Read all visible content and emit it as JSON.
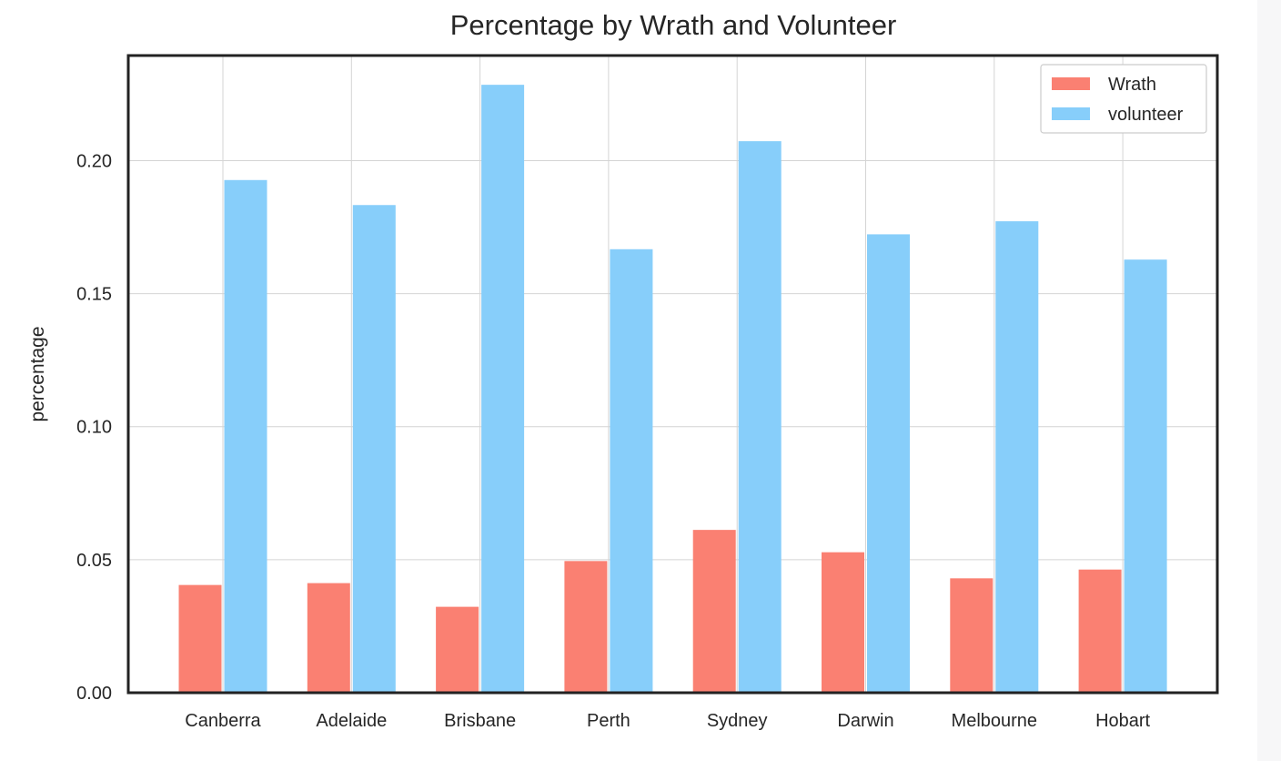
{
  "chart_data": {
    "type": "bar",
    "title": "Percentage by Wrath and Volunteer",
    "xlabel": "",
    "ylabel": "percentage",
    "categories": [
      "Canberra",
      "Adelaide",
      "Brisbane",
      "Perth",
      "Sydney",
      "Darwin",
      "Melbourne",
      "Hobart"
    ],
    "series": [
      {
        "name": "Wrath",
        "color": "#fa8072",
        "values": [
          0.0405,
          0.0412,
          0.0323,
          0.0495,
          0.0612,
          0.0528,
          0.043,
          0.0463
        ]
      },
      {
        "name": "volunteer",
        "color": "#87cefa",
        "values": [
          0.1927,
          0.1833,
          0.2285,
          0.1667,
          0.2073,
          0.1723,
          0.1772,
          0.1628
        ]
      }
    ],
    "ylim": [
      0,
      0.2395
    ],
    "yticks": [
      "0.00",
      "0.05",
      "0.10",
      "0.15",
      "0.20"
    ],
    "ytick_values": [
      0,
      0.05,
      0.1,
      0.15,
      0.2
    ],
    "grid": true,
    "legend_position": "top-right"
  }
}
